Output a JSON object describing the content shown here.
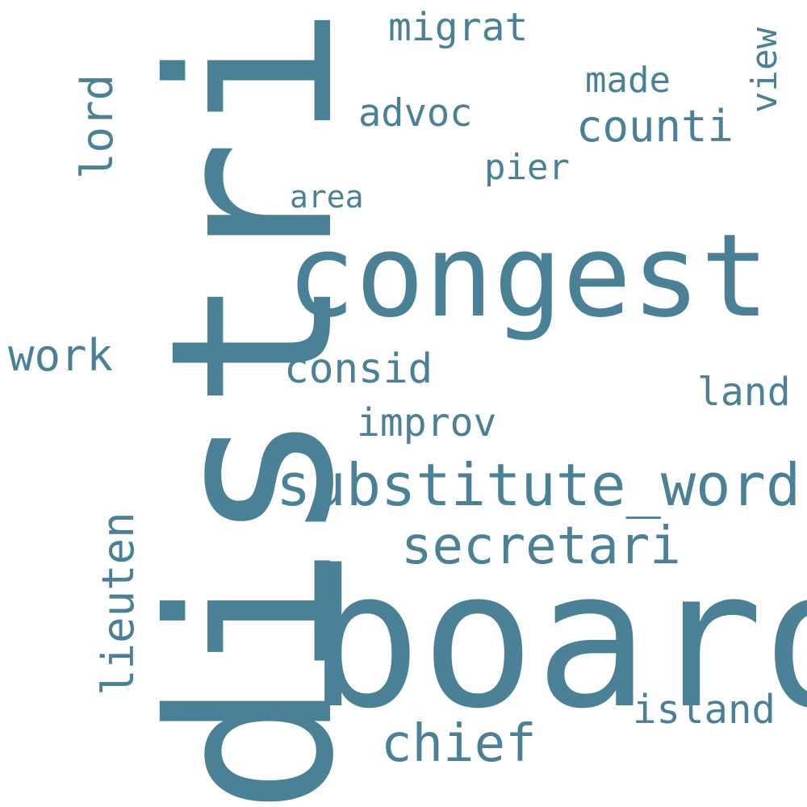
{
  "color": "#4a8196",
  "words": {
    "district": "district",
    "board": "board",
    "congest": "congest",
    "substitute_word": "substitute_word",
    "secretari": "secretari",
    "chief": "chief",
    "counti": "counti",
    "work": "work",
    "consid": "consid",
    "improv": "improv",
    "lieuten": "lieuten",
    "island": "island",
    "land": "land",
    "lord": "lord",
    "migrat": "migrat",
    "advoc": "advoc",
    "made": "made",
    "pier": "pier",
    "area": "area",
    "view": "view"
  }
}
